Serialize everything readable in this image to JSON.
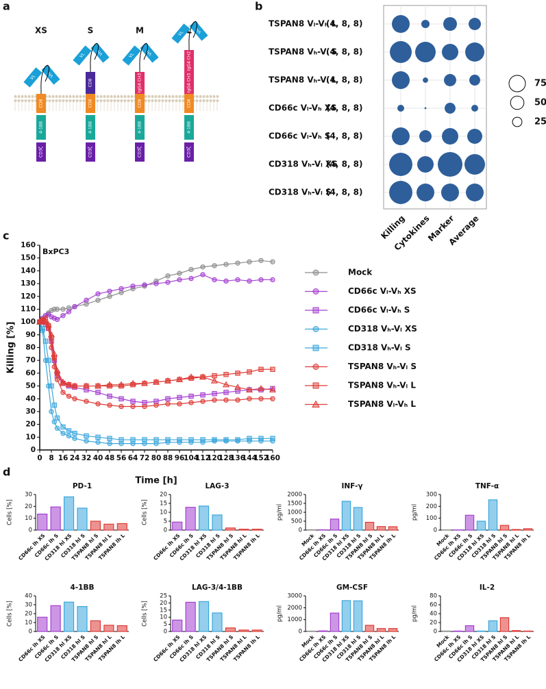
{
  "panel_labels": [
    "a",
    "b",
    "c",
    "d"
  ],
  "diagram": {
    "scfv": [
      "VL",
      "VH"
    ],
    "tm": "CD8",
    "costim": "4-1BB",
    "signal": "CD3ζ",
    "constructs": [
      {
        "name": "XS",
        "hinge": []
      },
      {
        "name": "S",
        "hinge": [
          {
            "label": "CD8",
            "color": "#4a2a9a"
          }
        ]
      },
      {
        "name": "M",
        "hinge": [
          {
            "label": "IgG4 CH3",
            "color": "#e0306a"
          }
        ]
      },
      {
        "name": "L",
        "hinge": [
          {
            "label": "IgG4 CH3",
            "color": "#e0306a"
          },
          {
            "label": "IgG4 CH2",
            "color": "#e0306a"
          }
        ]
      }
    ]
  },
  "chart_data": [
    {
      "type": "bubble",
      "color": "#2e5f9a",
      "rows": [
        "TSPAN8 Vₗ-Vₕ L",
        "TSPAN8 Vₕ-Vₗ S",
        "TSPAN8 Vₕ-Vₗ L",
        "CD66c Vₗ-Vₕ XS",
        "CD66c Vₗ-Vₕ S",
        "CD318 Vₕ-Vₗ XS",
        "CD318 Vₕ-Vₗ S"
      ],
      "row_notes": [
        "(4, 8, 8)",
        "(4, 8, 8)",
        "(4, 8, 8)",
        "(4, 8, 8)",
        "(4, 8, 8)",
        "(4, 8, 8)",
        "(4, 8, 8)"
      ],
      "categories": [
        "Killing",
        "Cytokines",
        "Marker",
        "Average"
      ],
      "values": [
        [
          88,
          19,
          52,
          42
        ],
        [
          133,
          117,
          75,
          102
        ],
        [
          88,
          8,
          42,
          33
        ],
        [
          13,
          1,
          33,
          13
        ],
        [
          88,
          42,
          75,
          63
        ],
        [
          150,
          75,
          169,
          117
        ],
        [
          150,
          88,
          88,
          88
        ]
      ],
      "size_legend": [
        75,
        50,
        25
      ]
    },
    {
      "type": "line",
      "title": "BxPC3",
      "xlabel": "Time [h]",
      "ylabel": "Killing [%]",
      "x": [
        0,
        2,
        4,
        6,
        8,
        10,
        12,
        16,
        20,
        24,
        32,
        40,
        48,
        56,
        64,
        72,
        80,
        88,
        96,
        104,
        112,
        120,
        128,
        136,
        144,
        152,
        160
      ],
      "xlim": [
        0,
        160
      ],
      "ylim": [
        0,
        160
      ],
      "xticks": [
        0,
        8,
        16,
        24,
        32,
        40,
        48,
        56,
        64,
        72,
        80,
        88,
        96,
        104,
        112,
        120,
        128,
        136,
        144,
        152,
        160
      ],
      "yticks": [
        0,
        10,
        20,
        30,
        40,
        50,
        60,
        70,
        80,
        90,
        100,
        110,
        120,
        130,
        140,
        150,
        160
      ],
      "series": [
        {
          "name": "Mock",
          "color": "#8c8c8c",
          "marker": "circle",
          "values": [
            100,
            102,
            105,
            107,
            109,
            110,
            110,
            110,
            111,
            112,
            114,
            117,
            120,
            123,
            126,
            128,
            132,
            136,
            138,
            141,
            143,
            144,
            145,
            146,
            147,
            148,
            147
          ]
        },
        {
          "name": "CD66c Vₗ-Vₕ XS",
          "color": "#a33fd0",
          "marker": "circle",
          "values": [
            100,
            103,
            105,
            106,
            104,
            103,
            102,
            105,
            108,
            112,
            117,
            122,
            124,
            126,
            128,
            129,
            130,
            131,
            133,
            134,
            137,
            133,
            132,
            133,
            132,
            133,
            133
          ]
        },
        {
          "name": "CD66c Vₗ-Vₕ S",
          "color": "#a33fd0",
          "marker": "square",
          "values": [
            100,
            100,
            98,
            95,
            85,
            70,
            58,
            52,
            50,
            49,
            47,
            45,
            42,
            40,
            38,
            37,
            38,
            40,
            41,
            42,
            43,
            44,
            45,
            46,
            47,
            47,
            48
          ]
        },
        {
          "name": "CD318 Vₕ-Vₗ XS",
          "color": "#3aa6dc",
          "marker": "circle",
          "values": [
            100,
            93,
            70,
            50,
            30,
            22,
            17,
            13,
            11,
            9,
            7,
            6,
            5,
            5,
            5,
            5,
            5,
            6,
            6,
            6,
            6,
            7,
            7,
            7,
            7,
            7,
            7
          ]
        },
        {
          "name": "CD318 Vₕ-Vₗ S",
          "color": "#3aa6dc",
          "marker": "square",
          "values": [
            100,
            95,
            85,
            70,
            50,
            35,
            25,
            18,
            15,
            13,
            11,
            10,
            9,
            8,
            8,
            8,
            8,
            8,
            8,
            8,
            8,
            8,
            8,
            8,
            9,
            9,
            9
          ]
        },
        {
          "name": "TSPAN8 Vₕ-Vₗ S",
          "color": "#dd3b36",
          "marker": "circle",
          "values": [
            100,
            102,
            103,
            95,
            80,
            65,
            55,
            45,
            42,
            40,
            38,
            36,
            35,
            34,
            34,
            34,
            35,
            36,
            36,
            37,
            38,
            39,
            39,
            39,
            40,
            40,
            40
          ]
        },
        {
          "name": "TSPAN8 Vₕ-Vₗ L",
          "color": "#dd3b36",
          "marker": "square",
          "values": [
            100,
            101,
            100,
            97,
            88,
            72,
            60,
            52,
            51,
            50,
            50,
            50,
            50,
            50,
            51,
            52,
            53,
            54,
            55,
            56,
            57,
            58,
            59,
            60,
            61,
            63,
            63
          ]
        },
        {
          "name": "TSPAN8 Vₗ-Vₕ L",
          "color": "#dd3b36",
          "marker": "triangle",
          "values": [
            100,
            101,
            100,
            98,
            90,
            75,
            62,
            53,
            51,
            50,
            50,
            50,
            51,
            51,
            52,
            52,
            53,
            54,
            55,
            57,
            57,
            54,
            51,
            49,
            47,
            48,
            47
          ]
        }
      ]
    },
    {
      "type": "bar",
      "title": "PD-1",
      "ylabel": "Cells [%]",
      "ylim": [
        0,
        30
      ],
      "yticks": [
        0,
        10,
        20,
        30
      ],
      "categories": [
        "CD66c lh XS",
        "CD66c lh S",
        "CD318 hl XS",
        "CD318 hl S",
        "TSPAN8 hl S",
        "TSPAN8 hl L",
        "TSPAN8 lh L"
      ],
      "colors": [
        "#a33fd0",
        "#a33fd0",
        "#3aa6dc",
        "#3aa6dc",
        "#dd3b36",
        "#dd3b36",
        "#dd3b36"
      ],
      "values": [
        13.5,
        19.5,
        28,
        18.5,
        7.5,
        5,
        5.5
      ]
    },
    {
      "type": "bar",
      "title": "LAG-3",
      "ylabel": "Cells [%]",
      "ylim": [
        0,
        20
      ],
      "yticks": [
        0,
        5,
        10,
        15,
        20
      ],
      "categories": [
        "CD66c lh XS",
        "CD66c lh S",
        "CD318 hl XS",
        "CD318 hl S",
        "TSPAN8 hl S",
        "TSPAN8 hl L",
        "TSPAN8 lh L"
      ],
      "colors": [
        "#a33fd0",
        "#a33fd0",
        "#3aa6dc",
        "#3aa6dc",
        "#dd3b36",
        "#dd3b36",
        "#dd3b36"
      ],
      "values": [
        4.5,
        12.8,
        13.5,
        8.5,
        1.2,
        0.5,
        0.5
      ]
    },
    {
      "type": "bar",
      "title": "INF-γ",
      "ylabel": "pg/ml",
      "ylim": [
        0,
        2000
      ],
      "yticks": [
        0,
        500,
        1000,
        1500,
        2000
      ],
      "categories": [
        "Mock",
        "CD66c lh XS",
        "CD66c lh S",
        "CD318 hl XS",
        "CD318 hl S",
        "TSPAN8 hl S",
        "TSPAN8 hl L",
        "TSPAN8 lh L"
      ],
      "colors": [
        "#8c8c8c",
        "#a33fd0",
        "#a33fd0",
        "#3aa6dc",
        "#3aa6dc",
        "#dd3b36",
        "#dd3b36",
        "#dd3b36"
      ],
      "values": [
        20,
        20,
        620,
        1620,
        1270,
        440,
        200,
        190
      ]
    },
    {
      "type": "bar",
      "title": "TNF-α",
      "ylabel": "pg/ml",
      "ylim": [
        0,
        300
      ],
      "yticks": [
        0,
        100,
        200,
        300
      ],
      "categories": [
        "Mock",
        "CD66c lh XS",
        "CD66c lh S",
        "CD318 hl XS",
        "CD318 hl S",
        "TSPAN8 hl S",
        "TSPAN8 hl L",
        "TSPAN8 lh L"
      ],
      "colors": [
        "#8c8c8c",
        "#a33fd0",
        "#a33fd0",
        "#3aa6dc",
        "#3aa6dc",
        "#dd3b36",
        "#dd3b36",
        "#dd3b36"
      ],
      "values": [
        2,
        2,
        125,
        75,
        255,
        40,
        5,
        12
      ]
    },
    {
      "type": "bar",
      "title": "4-1BB",
      "ylabel": "Cells [%]",
      "ylim": [
        0,
        40
      ],
      "yticks": [
        0,
        10,
        20,
        30,
        40
      ],
      "categories": [
        "CD66c lh XS",
        "CD66c lh S",
        "CD318 hl XS",
        "CD318 hl S",
        "TSPAN8 hl S",
        "TSPAN8 hl L",
        "TSPAN8 lh L"
      ],
      "colors": [
        "#a33fd0",
        "#a33fd0",
        "#3aa6dc",
        "#3aa6dc",
        "#dd3b36",
        "#dd3b36",
        "#dd3b36"
      ],
      "values": [
        16,
        29,
        33,
        28,
        12,
        7,
        6.5
      ]
    },
    {
      "type": "bar",
      "title": "LAG-3/4-1BB",
      "ylabel": "Cells [%]",
      "ylim": [
        0,
        25
      ],
      "yticks": [
        0,
        5,
        10,
        15,
        20,
        25
      ],
      "categories": [
        "CD66c lh XS",
        "CD66c lh S",
        "CD318 hl XS",
        "CD318 hl S",
        "TSPAN8 hl S",
        "TSPAN8 hl L",
        "TSPAN8 lh L"
      ],
      "colors": [
        "#a33fd0",
        "#a33fd0",
        "#3aa6dc",
        "#3aa6dc",
        "#dd3b36",
        "#dd3b36",
        "#dd3b36"
      ],
      "values": [
        8,
        20.5,
        21,
        13,
        2.5,
        1,
        1
      ]
    },
    {
      "type": "bar",
      "title": "GM-CSF",
      "ylabel": "pg/ml",
      "ylim": [
        0,
        3000
      ],
      "yticks": [
        0,
        1000,
        2000,
        3000
      ],
      "categories": [
        "Mock",
        "CD66c lh XS",
        "CD66c lh S",
        "CD318 hl XS",
        "CD318 hl S",
        "TSPAN8 hl S",
        "TSPAN8 hl L",
        "TSPAN8 lh L"
      ],
      "colors": [
        "#8c8c8c",
        "#a33fd0",
        "#a33fd0",
        "#3aa6dc",
        "#3aa6dc",
        "#dd3b36",
        "#dd3b36",
        "#dd3b36"
      ],
      "values": [
        30,
        50,
        1550,
        2600,
        2580,
        520,
        250,
        250
      ]
    },
    {
      "type": "bar",
      "title": "IL-2",
      "ylabel": "pg/ml",
      "ylim": [
        0,
        80
      ],
      "yticks": [
        0,
        20,
        40,
        60,
        80
      ],
      "categories": [
        "Mock",
        "CD66c lh XS",
        "CD66c lh S",
        "CD318 hl XS",
        "CD318 hl S",
        "TSPAN8 hl S",
        "TSPAN8 hl L",
        "TSPAN8 lh L"
      ],
      "colors": [
        "#8c8c8c",
        "#a33fd0",
        "#a33fd0",
        "#3aa6dc",
        "#3aa6dc",
        "#dd3b36",
        "#dd3b36",
        "#dd3b36"
      ],
      "values": [
        1,
        1,
        13,
        1,
        24,
        31,
        2,
        1
      ]
    }
  ]
}
